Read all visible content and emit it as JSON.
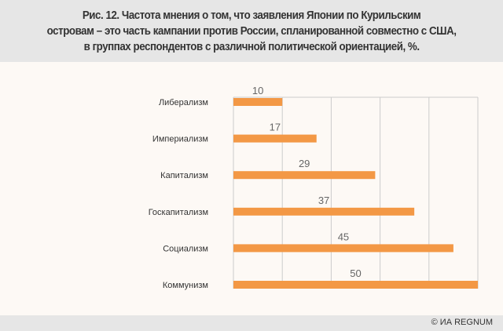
{
  "title": "Рис. 12. Частота мнения о том, что заявления Японии по Курильским\nостровам – это часть кампании против России, спланированной совместно с США,\nв группах респондентов с различной политической ориентацией, %.",
  "footer": {
    "credit": "© ИА REGNUM"
  },
  "colors": {
    "bar": "#f39845",
    "grid": "#cccccc",
    "header_bg": "#e6e6e6",
    "background": "#fdf9f5"
  },
  "chart_data": {
    "type": "bar",
    "orientation": "horizontal",
    "title": "Рис. 12. Частота мнения о том, что заявления Японии по Курильским островам – это часть кампании против России, спланированной совместно с США, в группах респондентов с различной политической ориентацией, %.",
    "categories": [
      "Либерализм",
      "Империализм",
      "Капитализм",
      "Госкапитализм",
      "Социализм",
      "Коммунизм"
    ],
    "values": [
      10,
      17,
      29,
      37,
      45,
      50
    ],
    "xlim": [
      0,
      50
    ],
    "grid_step": 10,
    "grid": true,
    "xlabel": "",
    "ylabel": ""
  }
}
